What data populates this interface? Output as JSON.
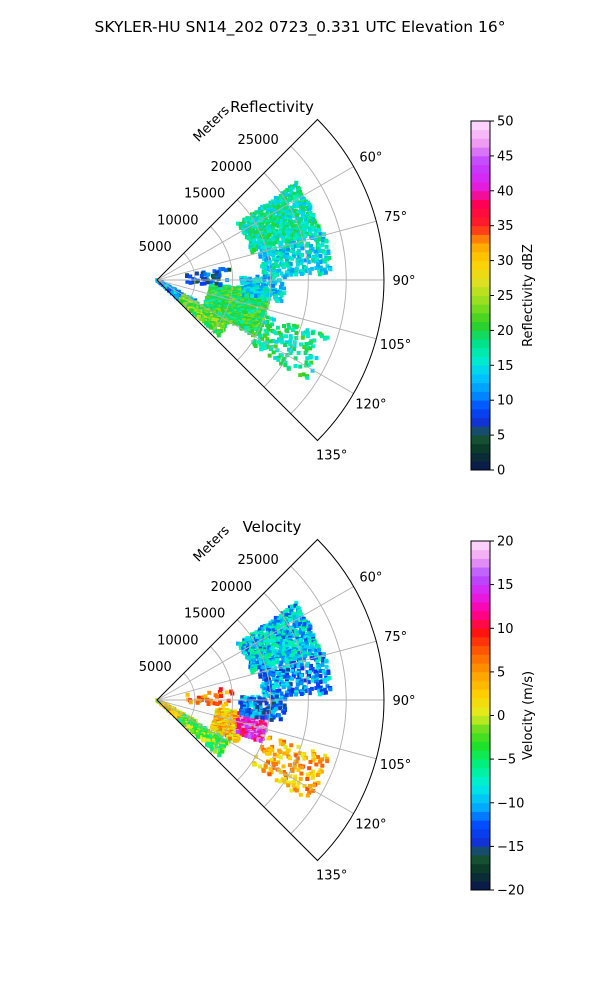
{
  "suptitle": "SKYLER-HU  SN14_202  0723_0.331 UTC Elevation 16°",
  "chart_data": [
    {
      "type": "heatmap",
      "projection": "polar-sector",
      "title": "Reflectivity",
      "range_axis_label": "Meters",
      "range_ticks": [
        "5000",
        "10000",
        "15000",
        "20000",
        "25000"
      ],
      "azimuth_ticks": [
        "60°",
        "75°",
        "90°",
        "105°",
        "120°",
        "135°"
      ],
      "azimuth_range_deg": [
        45,
        135
      ],
      "range_max_m": 30000,
      "grid": true,
      "colorbar": {
        "label": "Reflectivity dBZ",
        "min": 0,
        "max": 50,
        "ticks": [
          "0",
          "5",
          "10",
          "15",
          "20",
          "25",
          "30",
          "35",
          "40",
          "45",
          "50"
        ],
        "position": "right"
      },
      "echo_regions": [
        {
          "az_deg": [
            55,
            74
          ],
          "range_m": [
            13000,
            22500
          ],
          "value": 17,
          "density": 0.75
        },
        {
          "az_deg": [
            74,
            88
          ],
          "range_m": [
            14000,
            23000
          ],
          "value": 15,
          "density": 0.5
        },
        {
          "az_deg": [
            95,
            120
          ],
          "range_m": [
            7000,
            15000
          ],
          "value": 20,
          "density": 0.8
        },
        {
          "az_deg": [
            118,
            132
          ],
          "range_m": [
            0,
            6000
          ],
          "value": 12,
          "density": 0.55
        },
        {
          "az_deg": [
            120,
            132
          ],
          "range_m": [
            4000,
            11000
          ],
          "value": 22,
          "density": 0.65
        },
        {
          "az_deg": [
            88,
            100
          ],
          "range_m": [
            11000,
            17000
          ],
          "value": 14,
          "density": 0.45
        },
        {
          "az_deg": [
            108,
            124
          ],
          "range_m": [
            15000,
            24000
          ],
          "value": 18,
          "density": 0.25
        },
        {
          "az_deg": [
            80,
            95
          ],
          "range_m": [
            4000,
            10000
          ],
          "value": 8,
          "density": 0.12
        }
      ]
    },
    {
      "type": "heatmap",
      "projection": "polar-sector",
      "title": "Velocity",
      "range_axis_label": "Meters",
      "range_ticks": [
        "5000",
        "10000",
        "15000",
        "20000",
        "25000"
      ],
      "azimuth_ticks": [
        "60°",
        "75°",
        "90°",
        "105°",
        "120°",
        "135°"
      ],
      "azimuth_range_deg": [
        45,
        135
      ],
      "range_max_m": 30000,
      "grid": true,
      "colorbar": {
        "label": "Velocity (m/s)",
        "min": -20,
        "max": 20,
        "ticks": [
          "−20",
          "−15",
          "−10",
          "−5",
          "0",
          "5",
          "10",
          "15",
          "20"
        ],
        "position": "right"
      },
      "echo_regions": [
        {
          "az_deg": [
            55,
            74
          ],
          "range_m": [
            13000,
            22500
          ],
          "value": -9,
          "density": 0.75
        },
        {
          "az_deg": [
            74,
            88
          ],
          "range_m": [
            14000,
            23000
          ],
          "value": -11,
          "density": 0.5
        },
        {
          "az_deg": [
            98,
            118
          ],
          "range_m": [
            8000,
            12000
          ],
          "value": 3,
          "density": 0.8
        },
        {
          "az_deg": [
            96,
            112
          ],
          "range_m": [
            11000,
            15000
          ],
          "value": 12,
          "density": 0.75
        },
        {
          "az_deg": [
            118,
            132
          ],
          "range_m": [
            0,
            6000
          ],
          "value": 2,
          "density": 0.55
        },
        {
          "az_deg": [
            120,
            132
          ],
          "range_m": [
            4000,
            11000
          ],
          "value": -3,
          "density": 0.65
        },
        {
          "az_deg": [
            88,
            100
          ],
          "range_m": [
            11000,
            17000
          ],
          "value": -12,
          "density": 0.45
        },
        {
          "az_deg": [
            108,
            124
          ],
          "range_m": [
            15000,
            24000
          ],
          "value": 4,
          "density": 0.25
        },
        {
          "az_deg": [
            80,
            95
          ],
          "range_m": [
            4000,
            10000
          ],
          "value": 6,
          "density": 0.12
        }
      ]
    }
  ]
}
